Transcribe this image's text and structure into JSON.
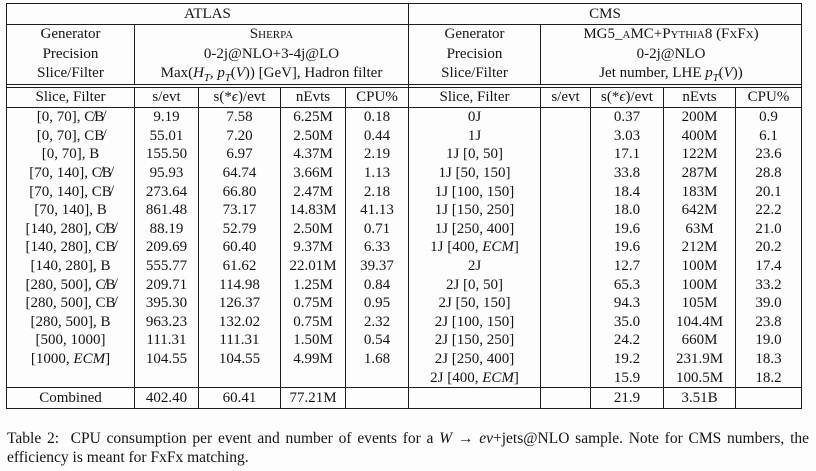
{
  "labels": {
    "generator": "Generator",
    "precision": "Precision",
    "slice_filter": "Slice/Filter"
  },
  "columns": {
    "slice": "Slice, Filter",
    "s_evt": "s/evt",
    "s_eps_evt_html": "s(*<i>ϵ</i>)/evt",
    "nevts": "nEvts",
    "cpu": "CPU%"
  },
  "atlas": {
    "title": "ATLAS",
    "generator": "Sherpa",
    "precision": "0-2j@NLO+3-4j@LO",
    "slice_filter_html": "Max(<i>H<sub>T</sub></i>, <i>p<sub>T</sub></i>(<i>V</i>)) [GeV], Hadron filter",
    "rows": [
      [
        "[0, 70], C̸B̸",
        "9.19",
        "7.58",
        "6.25M",
        "0.18"
      ],
      [
        "[0, 70], CB̸",
        "55.01",
        "7.20",
        "2.50M",
        "0.44"
      ],
      [
        "[0, 70], B",
        "155.50",
        "6.97",
        "4.37M",
        "2.19"
      ],
      [
        "[70, 140], C̸B̸",
        "95.93",
        "64.74",
        "3.66M",
        "1.13"
      ],
      [
        "[70, 140], CB̸",
        "273.64",
        "66.80",
        "2.47M",
        "2.18"
      ],
      [
        "[70, 140], B",
        "861.48",
        "73.17",
        "14.83M",
        "41.13"
      ],
      [
        "[140, 280], C̸B̸",
        "88.19",
        "52.79",
        "2.50M",
        "0.71"
      ],
      [
        "[140, 280], CB̸",
        "209.69",
        "60.40",
        "9.37M",
        "6.33"
      ],
      [
        "[140, 280], B",
        "555.77",
        "61.62",
        "22.01M",
        "39.37"
      ],
      [
        "[280, 500], C̸B̸",
        "209.71",
        "114.98",
        "1.25M",
        "0.84"
      ],
      [
        "[280, 500], CB̸",
        "395.30",
        "126.37",
        "0.75M",
        "0.95"
      ],
      [
        "[280, 500], B",
        "963.23",
        "132.02",
        "0.75M",
        "2.32"
      ],
      [
        "[500, 1000]",
        "111.31",
        "111.31",
        "1.50M",
        "0.54"
      ],
      [
        "[1000, <i>ECM</i>]",
        "104.55",
        "104.55",
        "4.99M",
        "1.68"
      ],
      [
        "",
        "",
        "",
        "",
        ""
      ]
    ],
    "combined": [
      "Combined",
      "402.40",
      "60.41",
      "77.21M",
      ""
    ]
  },
  "cms": {
    "title": "CMS",
    "generator": "MG5_aMC+Pythia8 (FxFx)",
    "precision": "0-2j@NLO",
    "slice_filter_html": "Jet number, LHE <i>p<sub>T</sub></i>(<i>V</i>))",
    "rows": [
      [
        "0J",
        "",
        "0.37",
        "200M",
        "0.9"
      ],
      [
        "1J",
        "",
        "3.03",
        "400M",
        "6.1"
      ],
      [
        "1J [0, 50]",
        "",
        "17.1",
        "122M",
        "23.6"
      ],
      [
        "1J [50, 150]",
        "",
        "33.8",
        "287M",
        "28.8"
      ],
      [
        "1J [100, 150]",
        "",
        "18.4",
        "183M",
        "20.1"
      ],
      [
        "1J [150, 250]",
        "",
        "18.0",
        "642M",
        "22.2"
      ],
      [
        "1J [250, 400]",
        "",
        "19.6",
        "63M",
        "21.0"
      ],
      [
        "1J [400, <i>ECM</i>]",
        "",
        "19.6",
        "212M",
        "20.2"
      ],
      [
        "2J",
        "",
        "12.7",
        "100M",
        "17.4"
      ],
      [
        "2J [0, 50]",
        "",
        "65.3",
        "100M",
        "33.2"
      ],
      [
        "2J [50, 150]",
        "",
        "94.3",
        "105M",
        "39.0"
      ],
      [
        "2J [100, 150]",
        "",
        "35.0",
        "104.4M",
        "23.8"
      ],
      [
        "2J [150, 250]",
        "",
        "24.2",
        "660M",
        "19.0"
      ],
      [
        "2J [250, 400]",
        "",
        "19.2",
        "231.9M",
        "18.3"
      ],
      [
        "2J [400, <i>ECM</i>]",
        "",
        "15.9",
        "100.5M",
        "18.2"
      ]
    ],
    "combined": [
      "",
      "",
      "21.9",
      "3.51B",
      ""
    ]
  },
  "caption": {
    "html": "Table 2:&nbsp;&nbsp;CPU consumption per event and number of events for a <i>W</i> → <i>eν</i>+jets@NLO sample. Note for CMS numbers, the efficiency is meant for FxFx matching."
  }
}
